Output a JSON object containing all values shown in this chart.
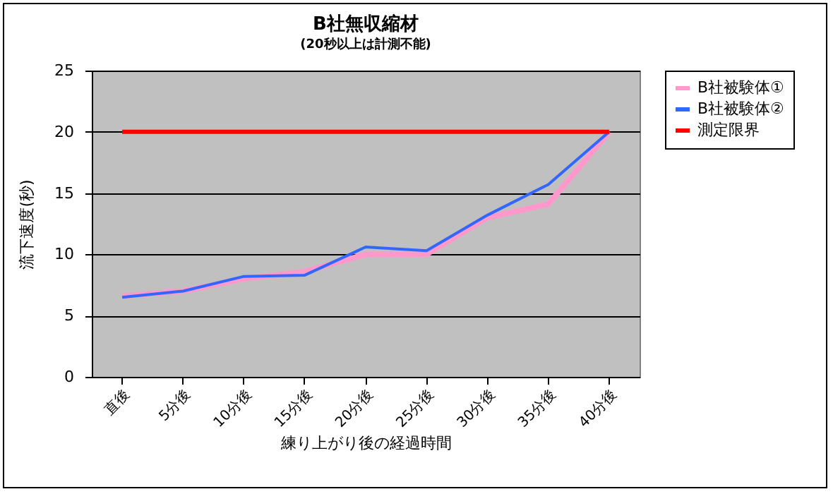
{
  "chart_data": {
    "type": "line",
    "title": "B社無収縮材",
    "subtitle": "(20秒以上は計測不能)",
    "xlabel": "練り上がり後の経過時間",
    "ylabel": "流下速度(秒)",
    "categories": [
      "直後",
      "5分後",
      "10分後",
      "15分後",
      "20分後",
      "25分後",
      "30分後",
      "35分後",
      "40分後"
    ],
    "series": [
      {
        "name": "B社被験体①",
        "color": "#ff99cc",
        "values": [
          6.6,
          7.0,
          8.0,
          8.6,
          10.0,
          10.0,
          13.0,
          14.1,
          20
        ]
      },
      {
        "name": "B社被験体②",
        "color": "#3366ff",
        "values": [
          6.5,
          7.0,
          8.2,
          8.3,
          10.6,
          10.3,
          13.2,
          15.7,
          20
        ]
      },
      {
        "name": "測定限界",
        "color": "#ff0000",
        "values": [
          20,
          20,
          20,
          20,
          20,
          20,
          20,
          20,
          20
        ]
      }
    ],
    "ylim": [
      0,
      25
    ],
    "yticks": [
      0,
      5,
      10,
      15,
      20,
      25
    ],
    "grid": "y",
    "legend": "right",
    "marker": "none",
    "line_style": "solid"
  }
}
